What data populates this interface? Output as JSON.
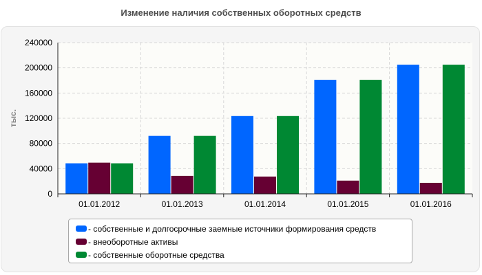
{
  "chart_data": {
    "type": "bar",
    "title": "Изменение наличия собственных оборотных средств",
    "xlabel": "",
    "ylabel": "тыс.",
    "categories": [
      "01.01.2012",
      "01.01.2013",
      "01.01.2014",
      "01.01.2015",
      "01.01.2016"
    ],
    "ylim": [
      0,
      240000
    ],
    "yticks": [
      0,
      40000,
      80000,
      120000,
      160000,
      200000,
      240000
    ],
    "grid": true,
    "legend_position": "bottom",
    "series": [
      {
        "name": "- собственные и долгосрочные заемные источники формирования средств",
        "color": "#0066ff",
        "values": [
          48500,
          92000,
          123500,
          181000,
          205000
        ]
      },
      {
        "name": "- внеоборотные активы",
        "color": "#660033",
        "values": [
          49500,
          28500,
          27500,
          21000,
          17500
        ]
      },
      {
        "name": "- собственные оборотные средства",
        "color": "#008833",
        "values": [
          48500,
          92000,
          123500,
          181000,
          205000
        ]
      }
    ]
  }
}
